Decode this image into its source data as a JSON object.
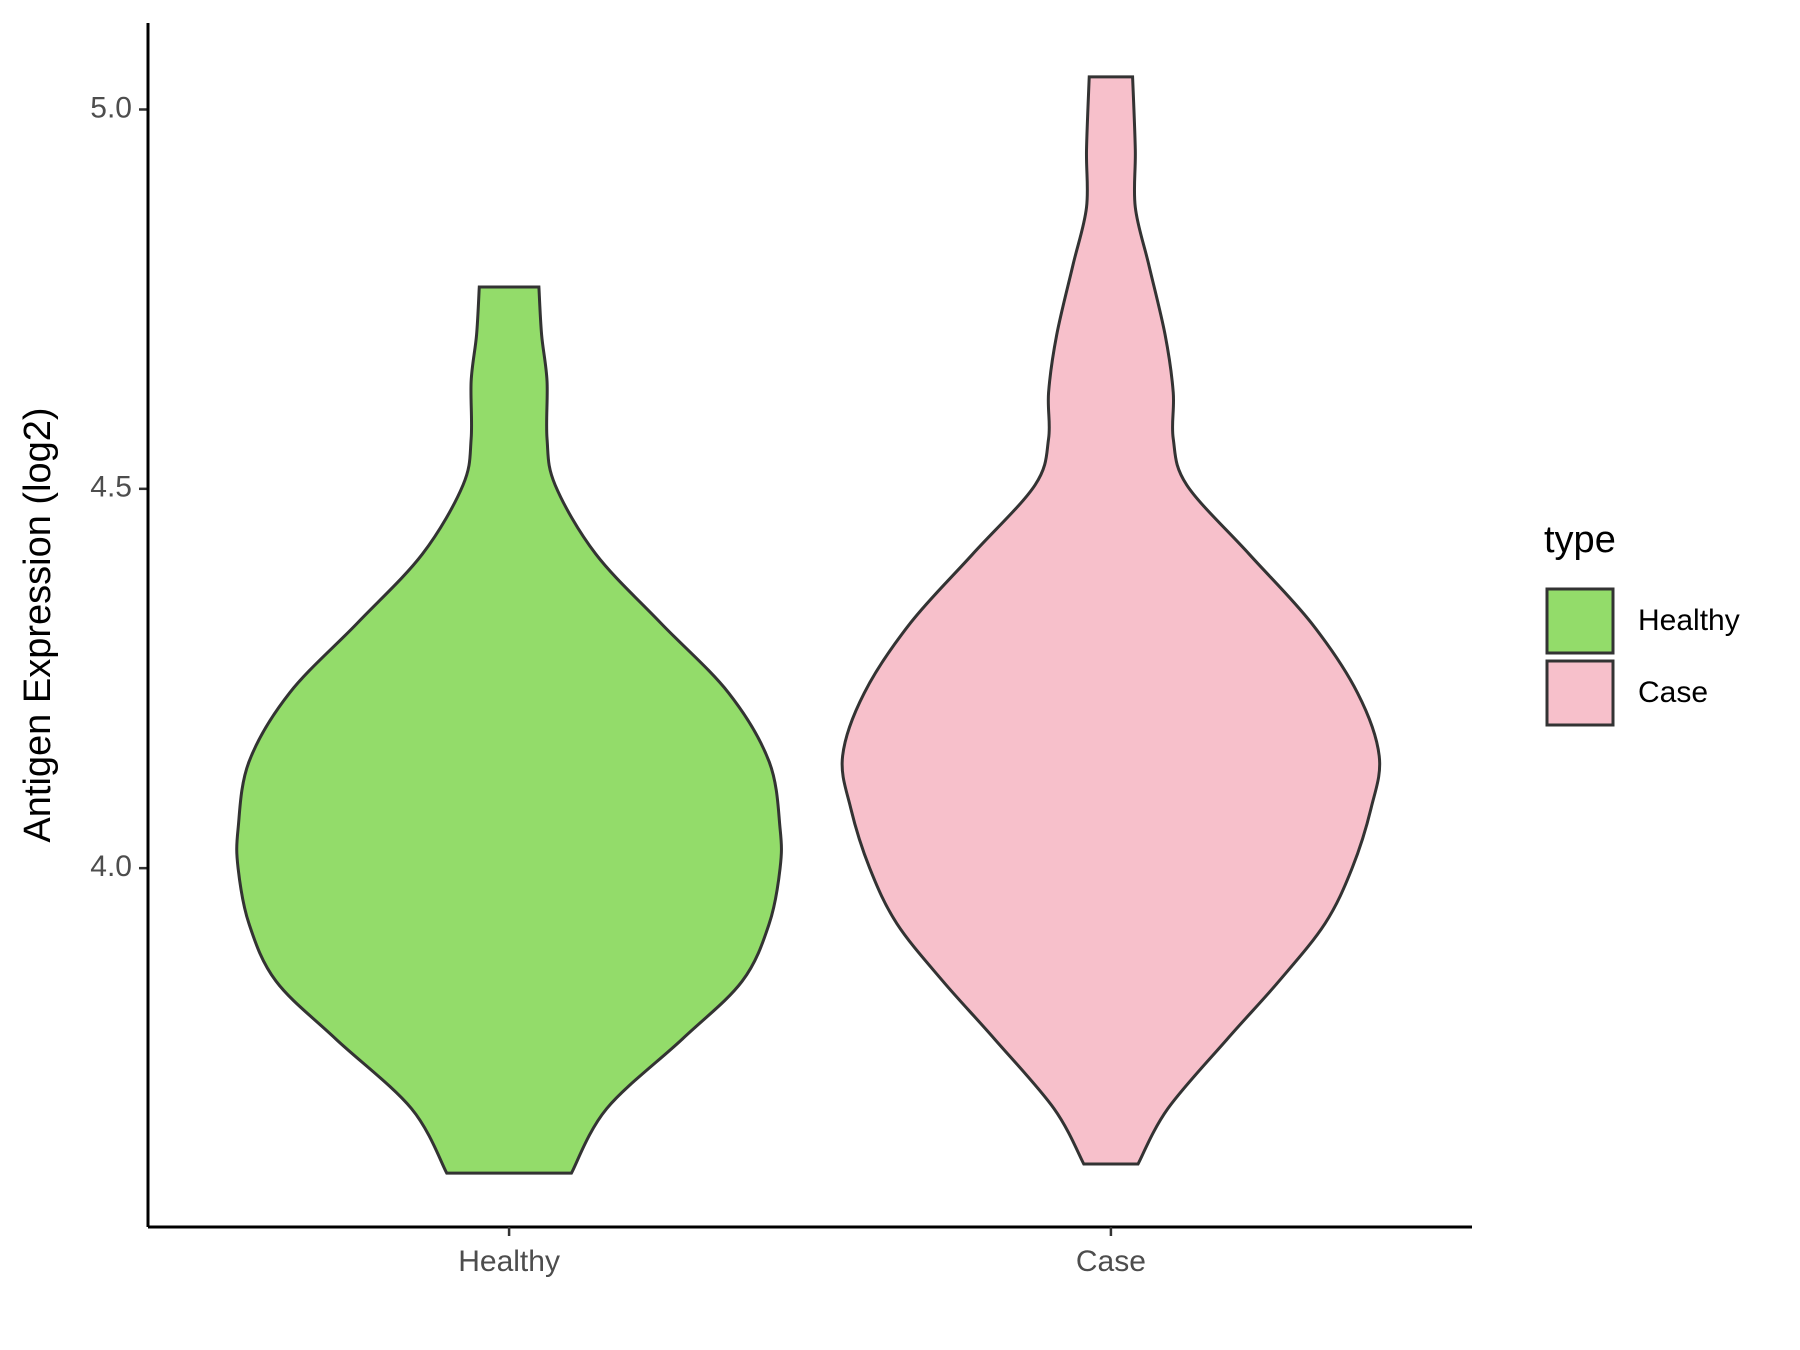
{
  "chart_data": {
    "type": "violin",
    "y_label": "Antigen Expression (log2)",
    "legend_title": "type",
    "categories": [
      "Healthy",
      "Case"
    ],
    "series": [
      {
        "name": "Healthy",
        "color": "#93dc6a",
        "y": [
          3.598,
          3.683,
          3.775,
          3.851,
          3.927,
          4.0,
          4.052,
          4.14,
          4.231,
          4.323,
          4.414,
          4.505,
          4.566,
          4.642,
          4.703,
          4.766
        ],
        "density": [
          0.23,
          0.36,
          0.64,
          0.86,
          0.96,
          1.0,
          1.0,
          0.96,
          0.81,
          0.56,
          0.32,
          0.17,
          0.14,
          0.14,
          0.12,
          0.11
        ]
      },
      {
        "name": "Case",
        "color": "#f7c0cb",
        "y": [
          3.61,
          3.683,
          3.775,
          3.851,
          3.927,
          4.0,
          4.079,
          4.148,
          4.231,
          4.323,
          4.414,
          4.505,
          4.566,
          4.627,
          4.703,
          4.795,
          4.871,
          4.947,
          5.043
        ],
        "density": [
          0.1,
          0.21,
          0.43,
          0.62,
          0.79,
          0.89,
          0.96,
          0.99,
          0.91,
          0.74,
          0.51,
          0.28,
          0.23,
          0.23,
          0.2,
          0.14,
          0.09,
          0.09,
          0.08
        ]
      }
    ],
    "ylim": [
      3.527,
      5.114
    ],
    "yticks": [
      {
        "value": 4.0,
        "label": "4.0"
      },
      4.5,
      {
        "value": 5.0,
        "label": "5.0"
      }
    ],
    "legend_position": "right"
  }
}
